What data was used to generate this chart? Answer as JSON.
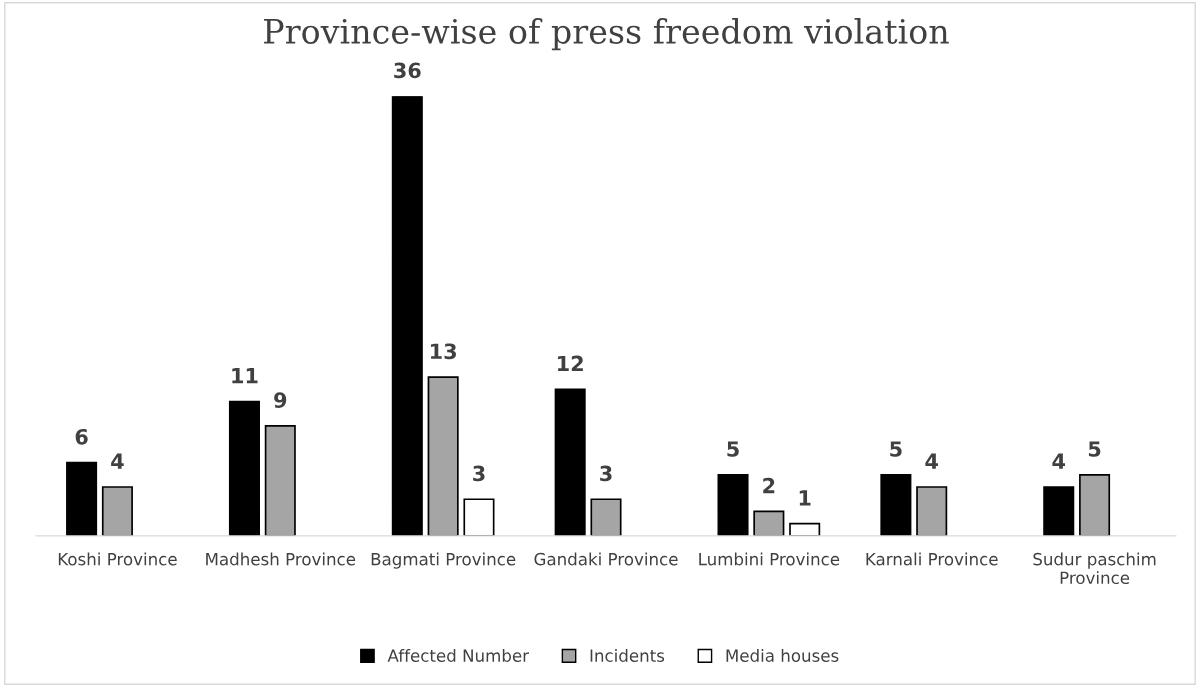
{
  "chart_data": {
    "type": "bar",
    "title": "Province-wise of press freedom violation",
    "categories": [
      "Koshi Province",
      "Madhesh Province",
      "Bagmati Province",
      "Gandaki Province",
      "Lumbini Province",
      "Karnali Province",
      "Sudur paschim Province"
    ],
    "series": [
      {
        "name": "Affected Number",
        "color": "#000000",
        "values": [
          6,
          11,
          36,
          12,
          5,
          5,
          4
        ]
      },
      {
        "name": "Incidents",
        "color": "#a5a5a5",
        "values": [
          4,
          9,
          13,
          3,
          2,
          4,
          5
        ]
      },
      {
        "name": "Media houses",
        "color": "#ffffff",
        "values": [
          null,
          null,
          3,
          null,
          1,
          null,
          null
        ]
      }
    ],
    "data_labels": true,
    "legend": "bottom",
    "grid": false
  }
}
